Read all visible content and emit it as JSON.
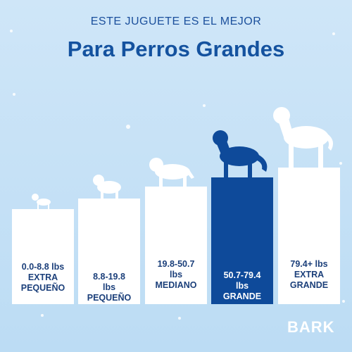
{
  "header": {
    "subtitle": "ESTE JUGUETE ES EL MEJOR",
    "title": "Para Perros Grandes"
  },
  "columns": [
    {
      "lines": [
        "0.0-8.8 lbs",
        "EXTRA",
        "PEQUEÑO"
      ]
    },
    {
      "lines": [
        "8.8-19.8",
        "lbs",
        "PEQUEÑO"
      ]
    },
    {
      "lines": [
        "19.8-50.7",
        "lbs",
        "MEDIANO"
      ]
    },
    {
      "lines": [
        "50.7-79.4",
        "lbs",
        "GRANDE"
      ]
    },
    {
      "lines": [
        "79.4+ lbs",
        "EXTRA",
        "GRANDE"
      ]
    }
  ],
  "logo": "BARK"
}
